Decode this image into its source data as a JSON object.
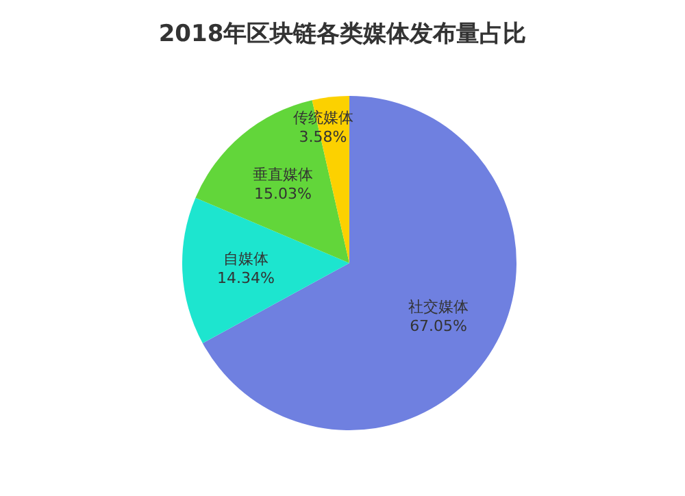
{
  "chart_data": {
    "type": "pie",
    "title": "2018年区块链各类媒体发布量占比",
    "categories": [
      "社交媒体",
      "自媒体",
      "垂直媒体",
      "传统媒体"
    ],
    "values": [
      67.05,
      14.34,
      15.03,
      3.58
    ],
    "value_labels": [
      "67.05%",
      "14.34%",
      "15.03%",
      "3.58%"
    ],
    "colors": [
      "#6f80e0",
      "#1de5cf",
      "#62d63a",
      "#fcd100"
    ],
    "legend": false
  }
}
